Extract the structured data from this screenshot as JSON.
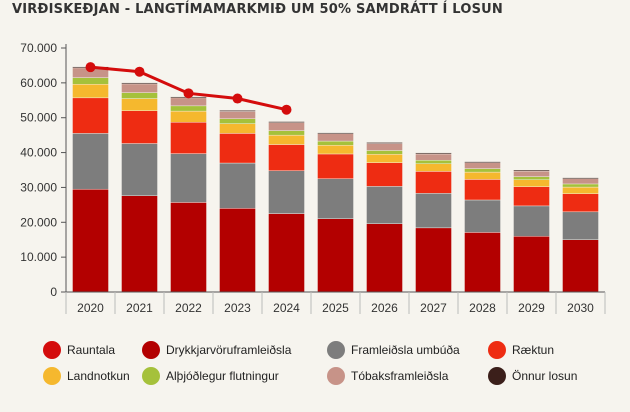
{
  "chart_data": {
    "type": "bar",
    "title": "VIRÐISKEÐJAN - LANGTÍMAMARKMIÐ UM 50% SAMDRÁTT Í LOSUN",
    "xlabel": "",
    "ylabel": "",
    "stacked": true,
    "categories": [
      "2020",
      "2021",
      "2022",
      "2023",
      "2024",
      "2025",
      "2026",
      "2027",
      "2028",
      "2029",
      "2030"
    ],
    "ylim": [
      0,
      70000
    ],
    "yticks": [
      0,
      10000,
      20000,
      30000,
      40000,
      50000,
      60000,
      70000
    ],
    "ytick_labels": [
      "0",
      "10.000",
      "20.000",
      "30.000",
      "40.000",
      "50.000",
      "60.000",
      "70.000"
    ],
    "grid": false,
    "legend_position": "bottom",
    "series": [
      {
        "name": "Drykkjarvöruframleiðsla",
        "color": "#b30000",
        "values": [
          29500,
          27600,
          25700,
          24000,
          22500,
          21000,
          19600,
          18400,
          17100,
          16000,
          15000
        ]
      },
      {
        "name": "Framleiðsla umbúða",
        "color": "#7d7d7d",
        "values": [
          16000,
          15000,
          14000,
          13000,
          12300,
          11500,
          10700,
          9900,
          9300,
          8700,
          8000
        ]
      },
      {
        "name": "Ræktun",
        "color": "#ee2c12",
        "values": [
          10200,
          9400,
          9000,
          8500,
          7500,
          7100,
          6800,
          6300,
          5900,
          5500,
          5200
        ]
      },
      {
        "name": "Landnotkun",
        "color": "#f5b82e",
        "values": [
          3900,
          3500,
          3200,
          2800,
          2700,
          2500,
          2400,
          2200,
          2100,
          2000,
          1900
        ]
      },
      {
        "name": "Alþjóðlegur flutningur",
        "color": "#a5c13b",
        "values": [
          1900,
          1700,
          1500,
          1400,
          1300,
          1200,
          1100,
          1000,
          1000,
          900,
          900
        ]
      },
      {
        "name": "Tóbaksframleiðsla",
        "color": "#c79388",
        "values": [
          2800,
          2500,
          2300,
          2100,
          2300,
          2100,
          2000,
          1800,
          1700,
          1600,
          1500
        ]
      },
      {
        "name": "Önnur losun",
        "color": "#3b1f1a",
        "values": [
          300,
          300,
          300,
          300,
          300,
          300,
          300,
          300,
          300,
          300,
          300
        ]
      }
    ],
    "line_series": [
      {
        "name": "Rauntala",
        "color": "#d40c0c",
        "x": [
          "2020",
          "2021",
          "2022",
          "2023",
          "2024"
        ],
        "values": [
          64500,
          63200,
          57000,
          55500,
          52300
        ]
      }
    ],
    "legend": [
      {
        "label": "Rauntala",
        "color": "#d40c0c"
      },
      {
        "label": "Drykkjarvöruframleiðsla",
        "color": "#b30000"
      },
      {
        "label": "Framleiðsla umbúða",
        "color": "#7d7d7d"
      },
      {
        "label": "Ræktun",
        "color": "#ee2c12"
      },
      {
        "label": "Landnotkun",
        "color": "#f5b82e"
      },
      {
        "label": "Alþjóðlegur flutningur",
        "color": "#a5c13b"
      },
      {
        "label": "Tóbaksframleiðsla",
        "color": "#c79388"
      },
      {
        "label": "Önnur losun",
        "color": "#3b1f1a"
      }
    ]
  }
}
